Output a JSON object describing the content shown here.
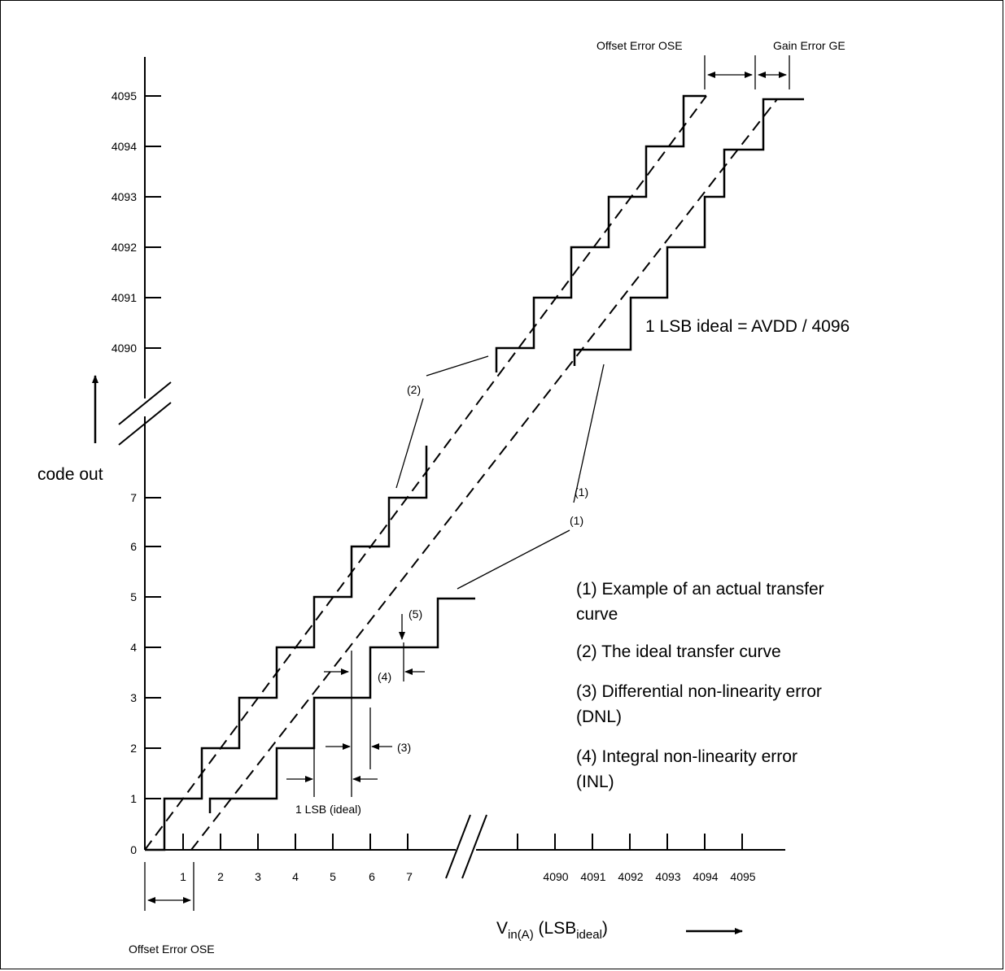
{
  "y_axis": {
    "label": "code out",
    "ticks_lower": [
      "0",
      "1",
      "2",
      "3",
      "4",
      "5",
      "6",
      "7"
    ],
    "ticks_upper": [
      "4090",
      "4091",
      "4092",
      "4093",
      "4094",
      "4095"
    ]
  },
  "x_axis": {
    "label_main": "V",
    "label_sub": "in(A)",
    "label_paren_open": " (LSB",
    "label_paren_sub": "ideal",
    "label_paren_close": ")",
    "ticks_lower": [
      "1",
      "2",
      "3",
      "4",
      "5",
      "6",
      "7"
    ],
    "ticks_upper": [
      "4090",
      "4091",
      "4092",
      "4093",
      "4094",
      "4095"
    ]
  },
  "annotations": {
    "offset_error_top": "Offset Error OSE",
    "gain_error": "Gain Error GE",
    "offset_error_bottom": "Offset Error OSE",
    "lsb_ideal": "1 LSB (ideal)",
    "lsb_formula": "1 LSB ideal = AVDD / 4096",
    "marker_1_upper": "(1)",
    "marker_1_lower": "(1)",
    "marker_2": "(2)",
    "marker_3": "(3)",
    "marker_4": "(4)",
    "marker_5": "(5)"
  },
  "legend": [
    {
      "line1": "(1) Example of an actual transfer",
      "line2": "curve"
    },
    {
      "line1": "(2) The ideal transfer curve",
      "line2": ""
    },
    {
      "line1": "(3) Differential non-linearity error",
      "line2": "(DNL)"
    },
    {
      "line1": "(4) Integral non-linearity error",
      "line2": "(INL)"
    }
  ]
}
